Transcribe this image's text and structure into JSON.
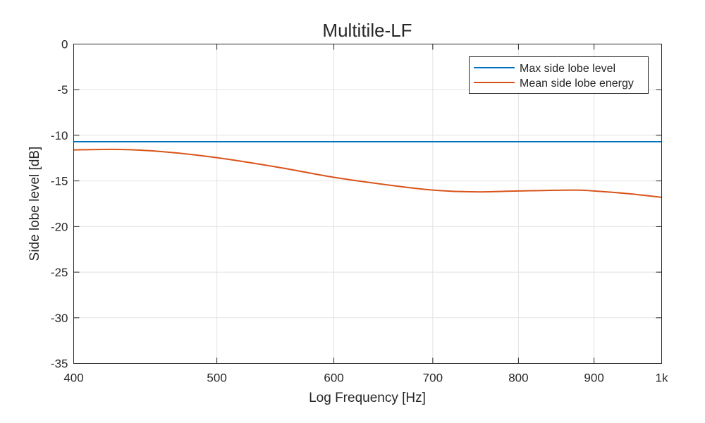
{
  "chart_data": {
    "type": "line",
    "title": "Multitile-LF",
    "xlabel": "Log Frequency [Hz]",
    "ylabel": "Side lobe level [dB]",
    "xscale": "log",
    "xlim": [
      400,
      1000
    ],
    "ylim": [
      -35,
      0
    ],
    "xticks": [
      400,
      500,
      600,
      700,
      800,
      900,
      1000
    ],
    "xtick_labels": [
      "400",
      "500",
      "600",
      "700",
      "800",
      "900",
      "1k"
    ],
    "yticks": [
      0,
      -5,
      -10,
      -15,
      -20,
      -25,
      -30,
      -35
    ],
    "ytick_labels": [
      "0",
      "-5",
      "-10",
      "-15",
      "-20",
      "-25",
      "-30",
      "-35"
    ],
    "grid": true,
    "legend_position": "top-right",
    "series": [
      {
        "name": "Max side lobe level",
        "color": "#0072BD",
        "x": [
          400,
          1000
        ],
        "y": [
          -10.7,
          -10.7
        ]
      },
      {
        "name": "Mean side lobe energy",
        "color": "#D95319",
        "x": [
          400,
          430,
          460,
          500,
          550,
          600,
          650,
          700,
          750,
          800,
          870,
          900,
          950,
          1000
        ],
        "y": [
          -11.6,
          -11.55,
          -11.8,
          -12.45,
          -13.5,
          -14.6,
          -15.4,
          -16.0,
          -16.2,
          -16.1,
          -16.0,
          -16.1,
          -16.4,
          -16.8
        ]
      }
    ]
  }
}
